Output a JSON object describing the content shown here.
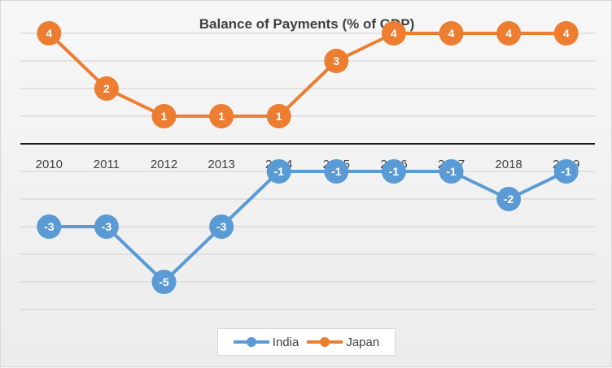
{
  "chart_data": {
    "type": "line",
    "title": "Balance of Payments (% of GDP)",
    "categories": [
      "2010",
      "2011",
      "2012",
      "2013",
      "2014",
      "2015",
      "2016",
      "2017",
      "2018",
      "2019"
    ],
    "series": [
      {
        "name": "India",
        "color": "#5b9bd5",
        "values": [
          -3,
          -3,
          -5,
          -3,
          -1,
          -1,
          -1,
          -1,
          -2,
          -1
        ]
      },
      {
        "name": "Japan",
        "color": "#ed7d31",
        "values": [
          4,
          2,
          1,
          1,
          1,
          3,
          4,
          4,
          4,
          4
        ]
      }
    ],
    "ylim": [
      -6,
      4
    ],
    "grid": true,
    "data_labels": true,
    "legend_position": "bottom"
  }
}
